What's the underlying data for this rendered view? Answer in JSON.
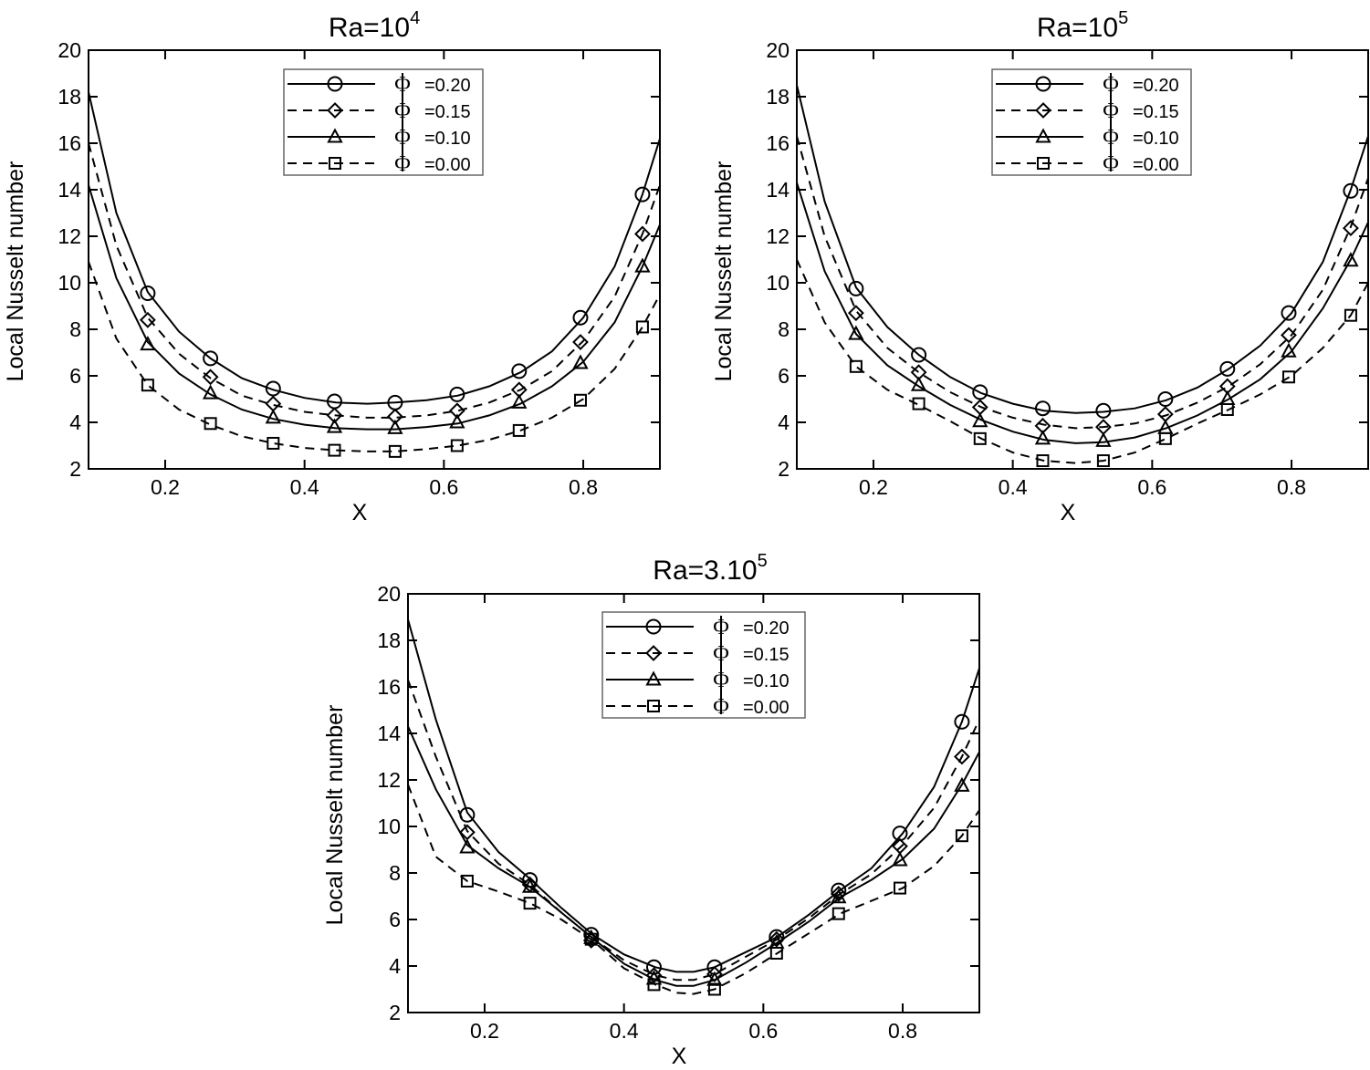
{
  "chart_data": [
    {
      "type": "line",
      "title_base": "Ra=10",
      "title_exp": "4",
      "xlabel": "X",
      "ylabel": "Local Nusselt number",
      "xlim": [
        0.09,
        0.91
      ],
      "ylim": [
        2,
        20
      ],
      "xticks": [
        "0.2",
        "0.4",
        "0.6",
        "0.8"
      ],
      "xtick_values": [
        0.2,
        0.4,
        0.6,
        0.8
      ],
      "yticks": [
        "2",
        "4",
        "6",
        "8",
        "10",
        "12",
        "14",
        "16",
        "18",
        "20"
      ],
      "ytick_values": [
        2,
        4,
        6,
        8,
        10,
        12,
        14,
        16,
        18,
        20
      ],
      "legend_position": "top-center",
      "series": [
        {
          "name": "=0.20",
          "symbol": "Φ",
          "line": "solid",
          "marker": "circle",
          "line_x": [
            0.09,
            0.13,
            0.175,
            0.22,
            0.265,
            0.31,
            0.355,
            0.4,
            0.445,
            0.49,
            0.53,
            0.575,
            0.62,
            0.665,
            0.71,
            0.755,
            0.8,
            0.845,
            0.885,
            0.91
          ],
          "line_y": [
            18.2,
            13.0,
            9.6,
            7.9,
            6.75,
            5.9,
            5.4,
            5.05,
            4.85,
            4.8,
            4.85,
            4.95,
            5.15,
            5.55,
            6.15,
            7.05,
            8.5,
            10.7,
            13.8,
            16.2
          ],
          "marker_x": [
            0.175,
            0.265,
            0.355,
            0.443,
            0.53,
            0.619,
            0.708,
            0.796,
            0.885
          ],
          "marker_y": [
            9.55,
            6.75,
            5.45,
            4.9,
            4.85,
            5.2,
            6.2,
            8.5,
            13.8
          ]
        },
        {
          "name": "=0.15",
          "symbol": "Φ",
          "line": "dashed",
          "marker": "diamond",
          "line_x": [
            0.09,
            0.13,
            0.175,
            0.22,
            0.265,
            0.31,
            0.355,
            0.4,
            0.445,
            0.49,
            0.53,
            0.575,
            0.62,
            0.665,
            0.71,
            0.755,
            0.8,
            0.845,
            0.885,
            0.91
          ],
          "line_y": [
            16.0,
            11.6,
            8.5,
            6.95,
            5.9,
            5.15,
            4.75,
            4.45,
            4.3,
            4.2,
            4.2,
            4.3,
            4.5,
            4.85,
            5.4,
            6.2,
            7.5,
            9.4,
            12.1,
            14.2
          ],
          "marker_x": [
            0.175,
            0.265,
            0.355,
            0.443,
            0.53,
            0.619,
            0.708,
            0.796,
            0.885
          ],
          "marker_y": [
            8.4,
            5.95,
            4.8,
            4.3,
            4.25,
            4.5,
            5.4,
            7.45,
            12.1
          ]
        },
        {
          "name": "=0.10",
          "symbol": "Φ",
          "line": "solid",
          "marker": "triangle",
          "line_x": [
            0.09,
            0.13,
            0.175,
            0.22,
            0.265,
            0.31,
            0.355,
            0.4,
            0.445,
            0.49,
            0.53,
            0.575,
            0.62,
            0.665,
            0.71,
            0.755,
            0.8,
            0.845,
            0.885,
            0.91
          ],
          "line_y": [
            14.2,
            10.2,
            7.45,
            6.1,
            5.2,
            4.55,
            4.15,
            3.9,
            3.75,
            3.7,
            3.7,
            3.8,
            3.95,
            4.3,
            4.8,
            5.55,
            6.6,
            8.3,
            10.7,
            12.5
          ],
          "marker_x": [
            0.175,
            0.265,
            0.355,
            0.443,
            0.53,
            0.619,
            0.708,
            0.796,
            0.885
          ],
          "marker_y": [
            7.35,
            5.25,
            4.2,
            3.8,
            3.75,
            4.0,
            4.85,
            6.55,
            10.7
          ]
        },
        {
          "name": "=0.00",
          "symbol": "Φ",
          "line": "dashed",
          "marker": "square",
          "line_x": [
            0.09,
            0.13,
            0.175,
            0.22,
            0.265,
            0.31,
            0.355,
            0.4,
            0.445,
            0.49,
            0.53,
            0.575,
            0.62,
            0.665,
            0.71,
            0.755,
            0.8,
            0.845,
            0.885,
            0.91
          ],
          "line_y": [
            10.9,
            7.6,
            5.6,
            4.55,
            3.9,
            3.4,
            3.1,
            2.9,
            2.8,
            2.75,
            2.75,
            2.85,
            3.0,
            3.25,
            3.65,
            4.2,
            5.0,
            6.3,
            8.1,
            9.5
          ],
          "marker_x": [
            0.175,
            0.265,
            0.355,
            0.443,
            0.53,
            0.619,
            0.708,
            0.796,
            0.885
          ],
          "marker_y": [
            5.6,
            3.95,
            3.1,
            2.8,
            2.75,
            3.0,
            3.65,
            4.95,
            8.1
          ]
        }
      ]
    },
    {
      "type": "line",
      "title_base": "Ra=10",
      "title_exp": "5",
      "xlabel": "X",
      "ylabel": "Local Nusselt number",
      "xlim": [
        0.09,
        0.91
      ],
      "ylim": [
        2,
        20
      ],
      "xticks": [
        "0.2",
        "0.4",
        "0.6",
        "0.8"
      ],
      "xtick_values": [
        0.2,
        0.4,
        0.6,
        0.8
      ],
      "yticks": [
        "2",
        "4",
        "6",
        "8",
        "10",
        "12",
        "14",
        "16",
        "18",
        "20"
      ],
      "ytick_values": [
        2,
        4,
        6,
        8,
        10,
        12,
        14,
        16,
        18,
        20
      ],
      "legend_position": "top-center",
      "series": [
        {
          "name": "=0.20",
          "symbol": "Φ",
          "line": "solid",
          "marker": "circle",
          "line_x": [
            0.09,
            0.13,
            0.175,
            0.22,
            0.265,
            0.31,
            0.355,
            0.4,
            0.445,
            0.49,
            0.53,
            0.575,
            0.62,
            0.665,
            0.71,
            0.755,
            0.8,
            0.845,
            0.885,
            0.91
          ],
          "line_y": [
            18.5,
            13.5,
            9.8,
            8.1,
            6.9,
            5.95,
            5.25,
            4.8,
            4.5,
            4.4,
            4.45,
            4.6,
            4.95,
            5.5,
            6.3,
            7.3,
            8.7,
            10.9,
            14.0,
            16.3
          ],
          "marker_x": [
            0.175,
            0.265,
            0.353,
            0.443,
            0.53,
            0.619,
            0.708,
            0.796,
            0.885
          ],
          "marker_y": [
            9.75,
            6.9,
            5.3,
            4.6,
            4.5,
            5.0,
            6.3,
            8.7,
            13.95
          ]
        },
        {
          "name": "=0.15",
          "symbol": "Φ",
          "line": "dashed",
          "marker": "diamond",
          "line_x": [
            0.09,
            0.13,
            0.175,
            0.22,
            0.265,
            0.31,
            0.355,
            0.4,
            0.445,
            0.49,
            0.53,
            0.575,
            0.62,
            0.665,
            0.71,
            0.755,
            0.8,
            0.845,
            0.885,
            0.91
          ],
          "line_y": [
            16.3,
            12.0,
            8.8,
            7.2,
            6.15,
            5.3,
            4.65,
            4.2,
            3.9,
            3.75,
            3.8,
            3.95,
            4.3,
            4.85,
            5.55,
            6.5,
            7.75,
            9.7,
            12.4,
            14.5
          ],
          "marker_x": [
            0.175,
            0.265,
            0.353,
            0.443,
            0.53,
            0.619,
            0.708,
            0.796,
            0.885
          ],
          "marker_y": [
            8.7,
            6.15,
            4.65,
            3.85,
            3.8,
            4.35,
            5.55,
            7.75,
            12.35
          ]
        },
        {
          "name": "=0.10",
          "symbol": "Φ",
          "line": "solid",
          "marker": "triangle",
          "line_x": [
            0.09,
            0.13,
            0.175,
            0.22,
            0.265,
            0.31,
            0.355,
            0.4,
            0.445,
            0.49,
            0.53,
            0.575,
            0.62,
            0.665,
            0.71,
            0.755,
            0.8,
            0.845,
            0.885,
            0.91
          ],
          "line_y": [
            14.3,
            10.5,
            7.8,
            6.45,
            5.55,
            4.75,
            4.1,
            3.6,
            3.25,
            3.1,
            3.15,
            3.35,
            3.75,
            4.3,
            5.0,
            5.85,
            7.05,
            8.9,
            11.0,
            12.6
          ],
          "marker_x": [
            0.175,
            0.265,
            0.353,
            0.443,
            0.53,
            0.619,
            0.708,
            0.796,
            0.885
          ],
          "marker_y": [
            7.8,
            5.6,
            4.05,
            3.3,
            3.2,
            3.75,
            5.0,
            7.05,
            10.95
          ]
        },
        {
          "name": "=0.00",
          "symbol": "Φ",
          "line": "dashed",
          "marker": "square",
          "line_x": [
            0.09,
            0.13,
            0.175,
            0.22,
            0.265,
            0.31,
            0.355,
            0.4,
            0.445,
            0.49,
            0.53,
            0.575,
            0.62,
            0.665,
            0.71,
            0.755,
            0.8,
            0.845,
            0.885,
            0.91
          ],
          "line_y": [
            11.0,
            8.3,
            6.4,
            5.4,
            4.75,
            4.05,
            3.3,
            2.7,
            2.35,
            2.25,
            2.35,
            2.7,
            3.3,
            3.95,
            4.55,
            5.2,
            6.0,
            7.2,
            8.6,
            10.0
          ],
          "marker_x": [
            0.175,
            0.265,
            0.353,
            0.443,
            0.53,
            0.619,
            0.708,
            0.796,
            0.885
          ],
          "marker_y": [
            6.4,
            4.8,
            3.3,
            2.35,
            2.35,
            3.3,
            4.55,
            5.95,
            8.6
          ]
        }
      ]
    },
    {
      "type": "line",
      "title_base": "Ra=3.10",
      "title_exp": "5",
      "xlabel": "X",
      "ylabel": "Local Nusselt number",
      "xlim": [
        0.09,
        0.91
      ],
      "ylim": [
        2,
        20
      ],
      "xticks": [
        "0.2",
        "0.4",
        "0.6",
        "0.8"
      ],
      "xtick_values": [
        0.2,
        0.4,
        0.6,
        0.8
      ],
      "yticks": [
        "2",
        "4",
        "6",
        "8",
        "10",
        "12",
        "14",
        "16",
        "18",
        "20"
      ],
      "ytick_values": [
        2,
        4,
        6,
        8,
        10,
        12,
        14,
        16,
        18,
        20
      ],
      "legend_position": "top-center",
      "series": [
        {
          "name": "=0.20",
          "symbol": "Φ",
          "line": "solid",
          "marker": "circle",
          "line_x": [
            0.09,
            0.13,
            0.175,
            0.22,
            0.265,
            0.31,
            0.355,
            0.4,
            0.445,
            0.475,
            0.5,
            0.53,
            0.575,
            0.62,
            0.665,
            0.71,
            0.755,
            0.8,
            0.845,
            0.885,
            0.91
          ],
          "line_y": [
            18.9,
            14.6,
            10.6,
            8.9,
            7.75,
            6.5,
            5.35,
            4.5,
            3.95,
            3.75,
            3.75,
            3.95,
            4.6,
            5.25,
            6.2,
            7.25,
            8.2,
            9.7,
            11.7,
            14.5,
            16.8
          ],
          "marker_x": [
            0.175,
            0.265,
            0.353,
            0.443,
            0.53,
            0.619,
            0.708,
            0.796,
            0.885
          ],
          "marker_y": [
            10.5,
            7.7,
            5.35,
            3.95,
            3.95,
            5.25,
            7.25,
            9.7,
            14.5
          ]
        },
        {
          "name": "=0.15",
          "symbol": "Φ",
          "line": "dashed",
          "marker": "diamond",
          "line_x": [
            0.09,
            0.13,
            0.175,
            0.22,
            0.265,
            0.31,
            0.355,
            0.4,
            0.445,
            0.475,
            0.5,
            0.53,
            0.575,
            0.62,
            0.665,
            0.71,
            0.755,
            0.8,
            0.845,
            0.885,
            0.91
          ],
          "line_y": [
            16.3,
            13.0,
            9.8,
            8.4,
            7.5,
            6.3,
            5.2,
            4.25,
            3.6,
            3.4,
            3.4,
            3.65,
            4.4,
            5.15,
            6.05,
            7.1,
            7.95,
            9.2,
            10.8,
            13.0,
            14.6
          ],
          "marker_x": [
            0.175,
            0.265,
            0.353,
            0.443,
            0.53,
            0.619,
            0.708,
            0.796,
            0.885
          ],
          "marker_y": [
            9.75,
            7.5,
            5.1,
            3.6,
            3.65,
            5.15,
            7.1,
            9.15,
            13.0
          ]
        },
        {
          "name": "=0.10",
          "symbol": "Φ",
          "line": "solid",
          "marker": "triangle",
          "line_x": [
            0.09,
            0.13,
            0.175,
            0.22,
            0.265,
            0.31,
            0.355,
            0.4,
            0.445,
            0.475,
            0.5,
            0.53,
            0.575,
            0.62,
            0.665,
            0.71,
            0.755,
            0.8,
            0.845,
            0.885,
            0.91
          ],
          "line_y": [
            14.3,
            11.6,
            9.2,
            8.2,
            7.4,
            6.3,
            5.2,
            4.1,
            3.4,
            3.15,
            3.15,
            3.4,
            4.15,
            5.0,
            5.9,
            6.95,
            7.7,
            8.6,
            9.9,
            11.8,
            13.2
          ],
          "marker_x": [
            0.175,
            0.265,
            0.353,
            0.443,
            0.53,
            0.619,
            0.708,
            0.796,
            0.885
          ],
          "marker_y": [
            9.1,
            7.4,
            5.2,
            3.45,
            3.4,
            5.0,
            6.95,
            8.55,
            11.75
          ]
        },
        {
          "name": "=0.00",
          "symbol": "Φ",
          "line": "dashed",
          "marker": "square",
          "line_x": [
            0.09,
            0.13,
            0.175,
            0.22,
            0.265,
            0.31,
            0.355,
            0.4,
            0.445,
            0.475,
            0.5,
            0.53,
            0.575,
            0.62,
            0.665,
            0.71,
            0.755,
            0.8,
            0.845,
            0.885,
            0.91
          ],
          "line_y": [
            11.8,
            8.7,
            7.65,
            7.2,
            6.7,
            6.0,
            5.1,
            3.9,
            3.2,
            2.85,
            2.8,
            3.0,
            3.7,
            4.55,
            5.4,
            6.25,
            6.8,
            7.35,
            8.3,
            9.6,
            10.7
          ],
          "marker_x": [
            0.175,
            0.265,
            0.353,
            0.443,
            0.53,
            0.619,
            0.708,
            0.796,
            0.885
          ],
          "marker_y": [
            7.65,
            6.7,
            5.15,
            3.2,
            3.0,
            4.55,
            6.25,
            7.35,
            9.6
          ]
        }
      ]
    }
  ]
}
